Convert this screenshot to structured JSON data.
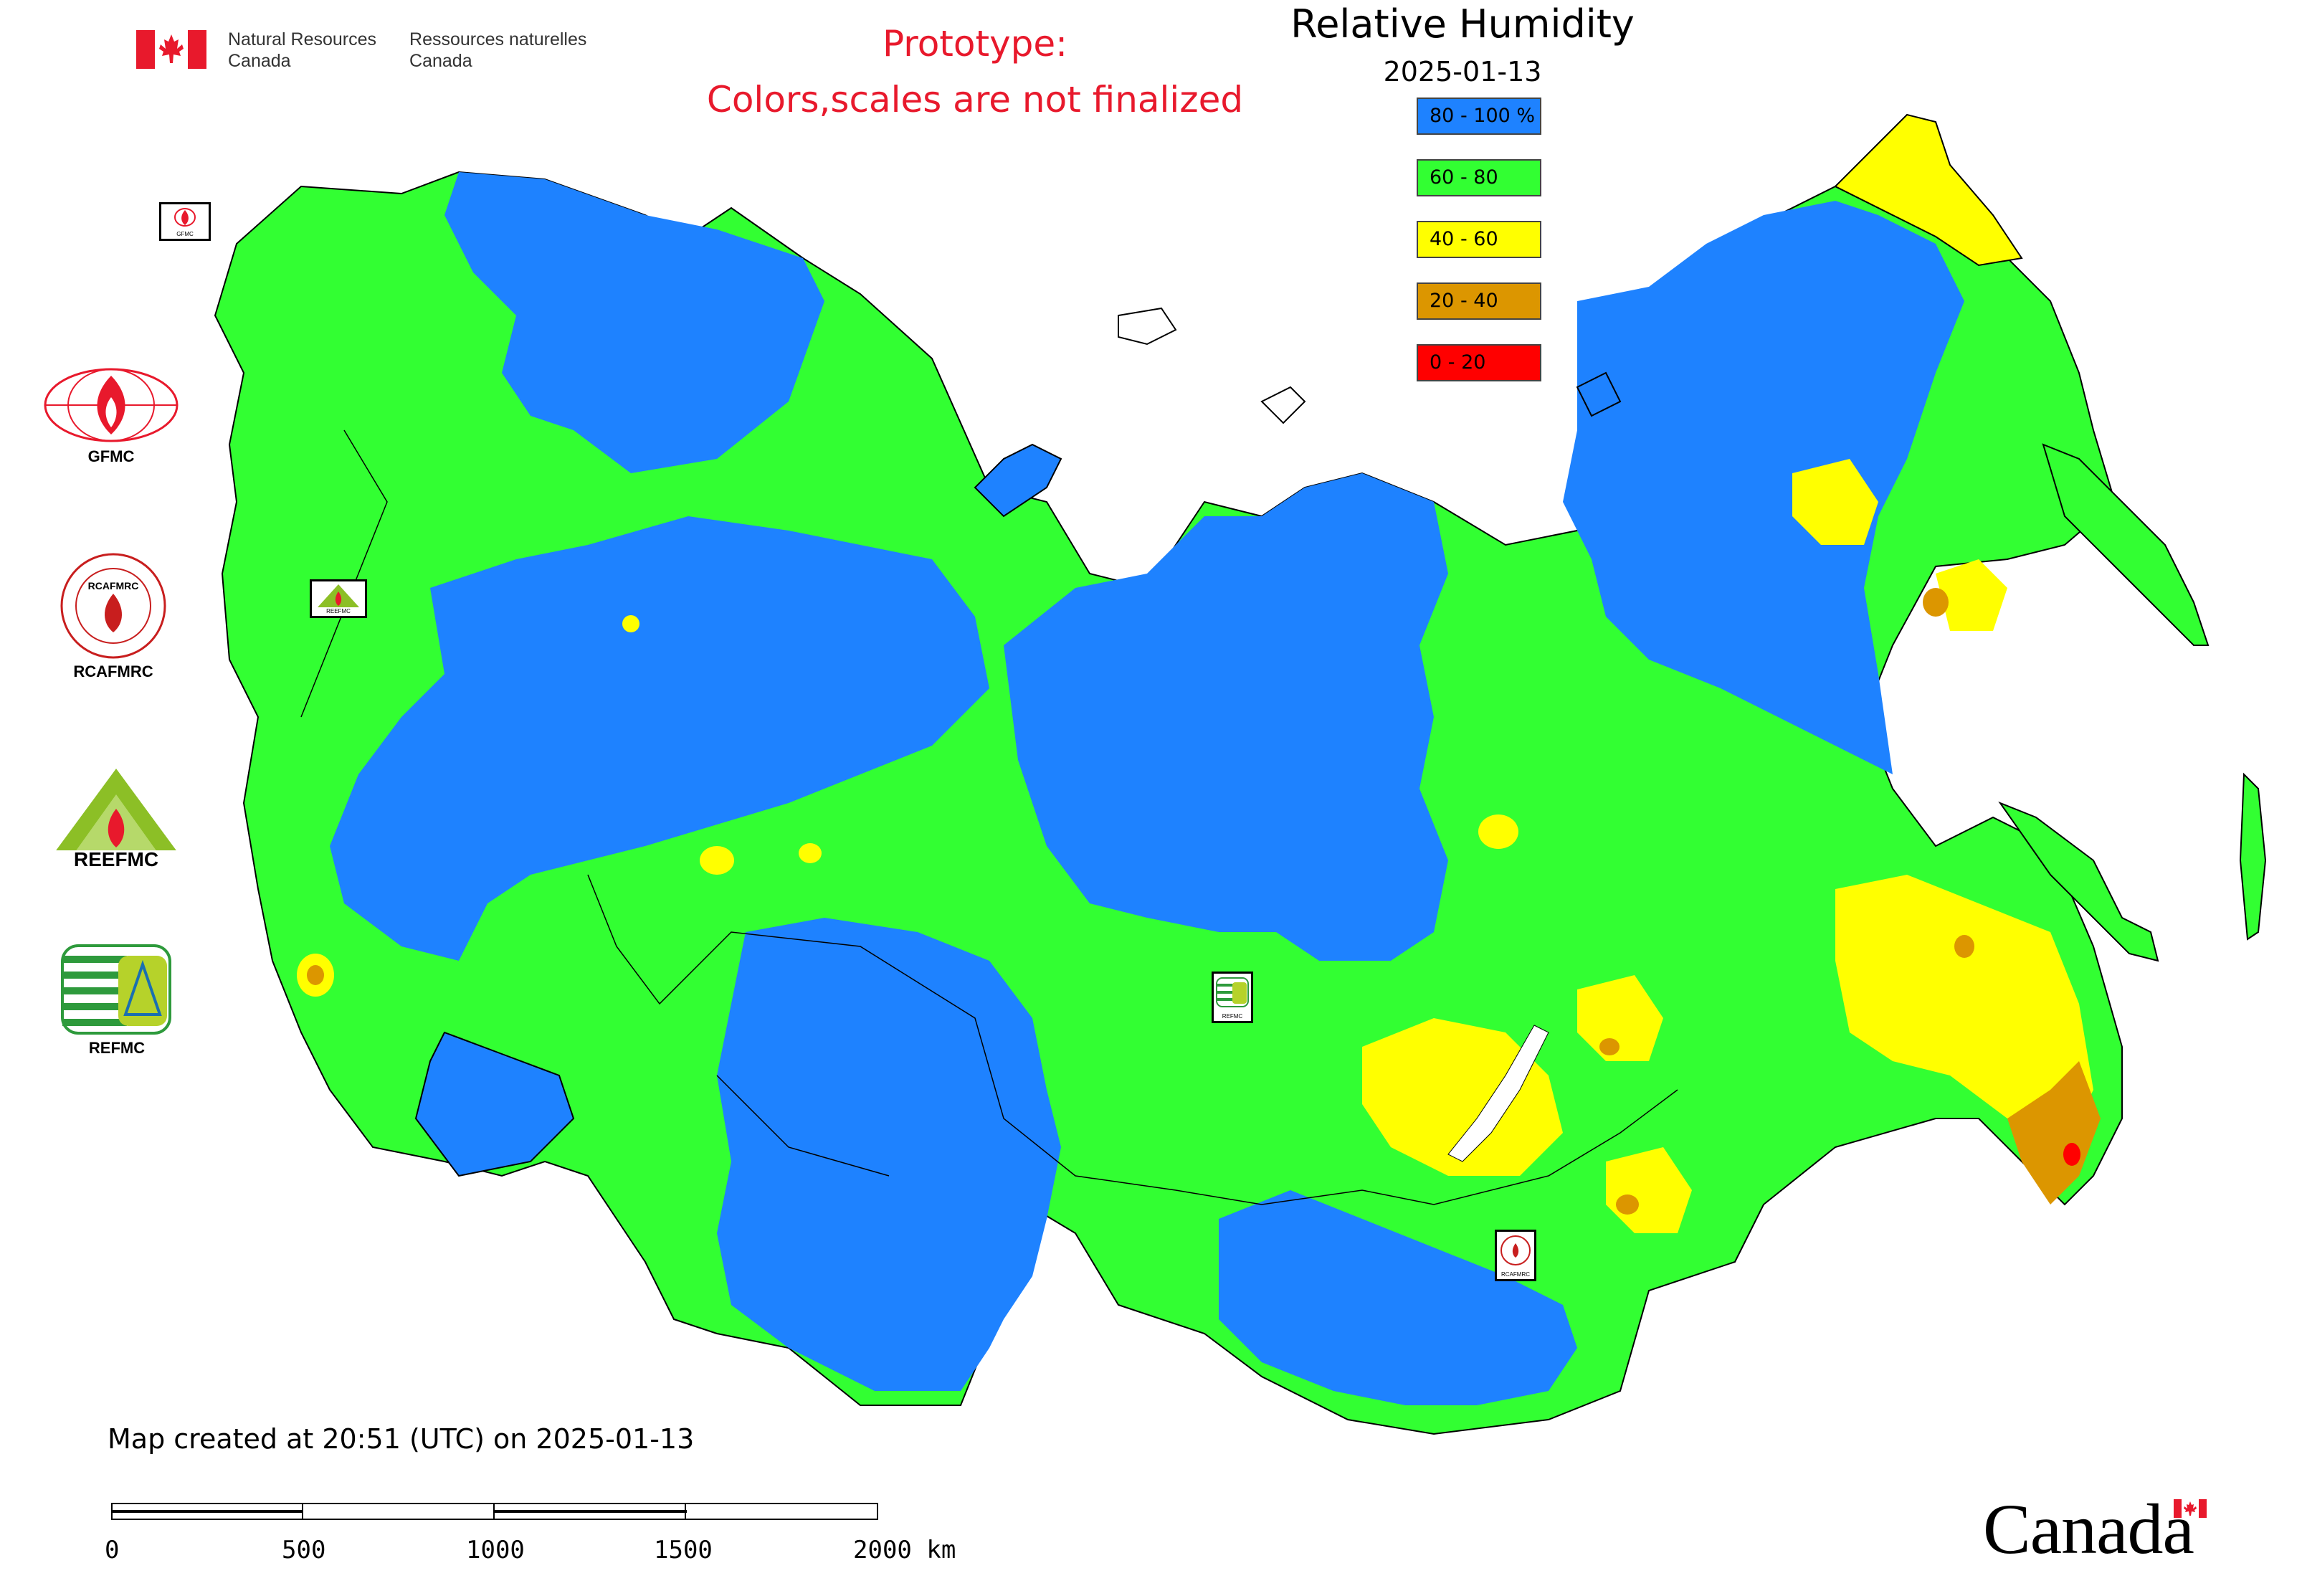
{
  "header": {
    "org_en_line1": "Natural Resources",
    "org_en_line2": "Canada",
    "org_fr_line1": "Ressources naturelles",
    "org_fr_line2": "Canada",
    "prototype_line1": "Prototype:",
    "prototype_line2": "Colors,scales are not finalized"
  },
  "legend": {
    "title": "Relative Humidity",
    "date": "2025-01-13",
    "classes": [
      {
        "label": "80 - 100 %",
        "color": "#1e82ff"
      },
      {
        "label": "60 - 80",
        "color": "#32ff32"
      },
      {
        "label": "40 - 60",
        "color": "#ffff00"
      },
      {
        "label": "20 - 40",
        "color": "#dc9600"
      },
      {
        "label": "0 - 20",
        "color": "#ff0000"
      }
    ]
  },
  "partners": [
    {
      "label": "GFMC",
      "icon": "gfmc-globe-fire-icon"
    },
    {
      "label": "RCAFMRC",
      "icon": "rcafmrc-seal-icon"
    },
    {
      "label": "",
      "logo_text": "REEFMC",
      "icon": "reefmc-triangle-fire-icon"
    },
    {
      "label": "REFMC",
      "icon": "refmc-stripes-icon"
    }
  ],
  "map_markers": [
    {
      "label": "GFMC"
    },
    {
      "label": "REEFMC"
    },
    {
      "label": "REFMC"
    },
    {
      "label": "RCAFMRC"
    }
  ],
  "footer": {
    "created": "Map created at 20:51 (UTC) on 2025-01-13",
    "scale_labels": [
      "0",
      "500",
      "1000",
      "1500",
      "2000 km"
    ],
    "wordmark": "Canada"
  },
  "colors": {
    "very_humid": "#1e82ff",
    "humid": "#32ff32",
    "moderate": "#ffff00",
    "dry": "#dc9600",
    "very_dry": "#ff0000",
    "brand_red": "#e8192c"
  }
}
